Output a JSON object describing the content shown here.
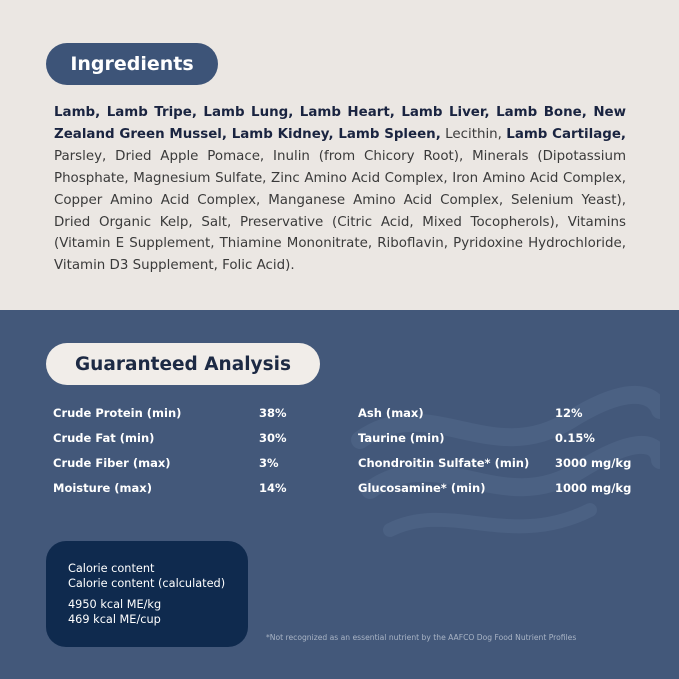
{
  "ingredients": {
    "title": "Ingredients",
    "bold_part_1": "Lamb, Lamb Tripe, Lamb Lung, Lamb Heart, Lamb Liver, Lamb Bone, New Zealand Green Mussel, Lamb Kidney, Lamb Spleen,",
    "normal_part_1": " Lecithin, ",
    "bold_part_2": "Lamb Cartilage,",
    "normal_part_2": " Parsley, Dried Apple Pomace, Inulin (from Chicory Root), Minerals (Dipotassium Phosphate, Magnesium Sulfate, Zinc Amino Acid Complex, Iron Amino Acid Complex, Copper Amino Acid Complex, Manganese Amino Acid Complex, Selenium Yeast), Dried Organic Kelp, Salt, Preservative (Citric Acid, Mixed Tocopherols), Vitamins (Vitamin E Supplement, Thiamine Mononitrate, Riboflavin, Pyridoxine Hydrochloride, Vitamin D3 Supplement, Folic Acid)."
  },
  "analysis": {
    "title": "Guaranteed Analysis",
    "left": [
      {
        "label": "Crude Protein (min)",
        "value": "38%"
      },
      {
        "label": "Crude Fat (min)",
        "value": "30%"
      },
      {
        "label": "Crude Fiber (max)",
        "value": "3%"
      },
      {
        "label": "Moisture (max)",
        "value": "14%"
      }
    ],
    "right": [
      {
        "label": "Ash (max)",
        "value": "12%"
      },
      {
        "label": "Taurine (min)",
        "value": "0.15%"
      },
      {
        "label": "Chondroitin Sulfate* (min)",
        "value": "3000 mg/kg"
      },
      {
        "label": "Glucosamine* (min)",
        "value": "1000 mg/kg"
      }
    ]
  },
  "calorie": {
    "line1": "Calorie content",
    "line2": "Calorie content (calculated)",
    "per_kg": "4950 kcal ME/kg",
    "per_cup": "469 kcal ME/cup"
  },
  "footnote": "*Not recognized as an essential nutrient by the AAFCO Dog Food Nutrient Profiles",
  "colors": {
    "top_bg": "#ebe7e3",
    "bottom_bg": "#43587a",
    "calorie_box": "#0f2a4e"
  }
}
